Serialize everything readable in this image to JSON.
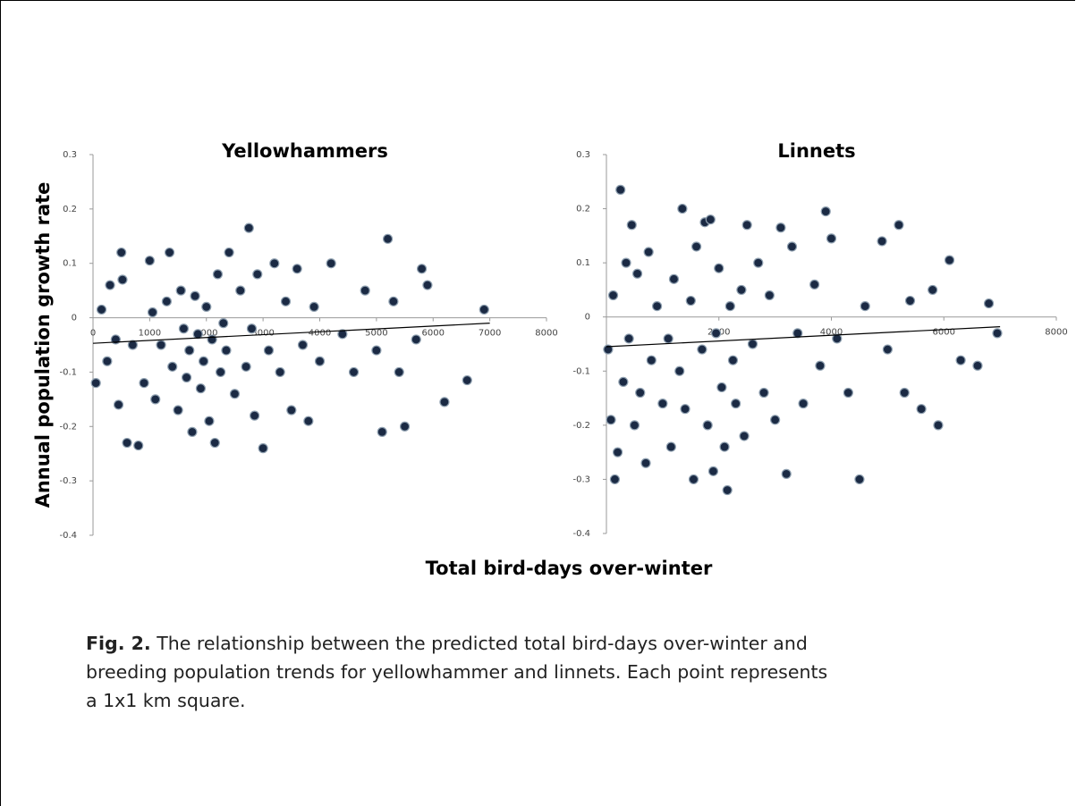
{
  "chart_data": [
    {
      "type": "scatter",
      "title": "Yellowhammers",
      "x": [
        50,
        150,
        250,
        300,
        400,
        450,
        500,
        520,
        600,
        700,
        800,
        900,
        1000,
        1050,
        1100,
        1200,
        1300,
        1350,
        1400,
        1500,
        1550,
        1600,
        1650,
        1700,
        1750,
        1800,
        1850,
        1900,
        1950,
        2000,
        2050,
        2100,
        2150,
        2200,
        2250,
        2300,
        2350,
        2400,
        2500,
        2600,
        2700,
        2750,
        2800,
        2850,
        2900,
        3000,
        3100,
        3200,
        3300,
        3400,
        3500,
        3600,
        3700,
        3800,
        3900,
        4000,
        4200,
        4400,
        4600,
        4800,
        5000,
        5100,
        5200,
        5300,
        5400,
        5500,
        5700,
        5800,
        5900,
        6200,
        6600,
        6900
      ],
      "values": [
        -0.12,
        0.015,
        -0.08,
        0.06,
        -0.04,
        -0.16,
        0.12,
        0.07,
        -0.23,
        -0.05,
        -0.235,
        -0.12,
        0.105,
        0.01,
        -0.15,
        -0.05,
        0.03,
        0.12,
        -0.09,
        -0.17,
        0.05,
        -0.02,
        -0.11,
        -0.06,
        -0.21,
        0.04,
        -0.03,
        -0.13,
        -0.08,
        0.02,
        -0.19,
        -0.04,
        -0.23,
        0.08,
        -0.1,
        -0.01,
        -0.06,
        0.12,
        -0.14,
        0.05,
        -0.09,
        0.165,
        -0.02,
        -0.18,
        0.08,
        -0.24,
        -0.06,
        0.1,
        -0.1,
        0.03,
        -0.17,
        0.09,
        -0.05,
        -0.19,
        0.02,
        -0.08,
        0.1,
        -0.03,
        -0.1,
        0.05,
        -0.06,
        -0.21,
        0.145,
        0.03,
        -0.1,
        -0.2,
        -0.04,
        0.09,
        0.06,
        -0.155,
        -0.115,
        0.015
      ],
      "color": "#1b2a44",
      "trendline": {
        "x": [
          0,
          7000
        ],
        "y": [
          -0.047,
          -0.01
        ]
      },
      "xlim": [
        0,
        8000
      ],
      "xticks": [
        0,
        1000,
        2000,
        3000,
        4000,
        5000,
        6000,
        7000,
        8000
      ],
      "ylim": [
        -0.4,
        0.3
      ],
      "yticks": [
        -0.4,
        -0.3,
        -0.2,
        -0.1,
        0,
        0.1,
        0.2,
        0.3
      ]
    },
    {
      "type": "scatter",
      "title": "Linnets",
      "x": [
        30,
        80,
        120,
        150,
        200,
        250,
        300,
        350,
        400,
        450,
        500,
        550,
        600,
        700,
        750,
        800,
        900,
        1000,
        1100,
        1150,
        1200,
        1300,
        1350,
        1400,
        1500,
        1550,
        1600,
        1700,
        1750,
        1800,
        1850,
        1900,
        1950,
        2000,
        2050,
        2100,
        2150,
        2200,
        2250,
        2300,
        2400,
        2450,
        2500,
        2600,
        2700,
        2800,
        2900,
        3000,
        3100,
        3200,
        3300,
        3400,
        3500,
        3700,
        3800,
        3900,
        4000,
        4100,
        4300,
        4500,
        4600,
        4900,
        5000,
        5200,
        5300,
        5400,
        5600,
        5800,
        5900,
        6100,
        6300,
        6600,
        6800,
        6950
      ],
      "values": [
        -0.06,
        -0.19,
        0.04,
        -0.3,
        -0.25,
        0.235,
        -0.12,
        0.1,
        -0.04,
        0.17,
        -0.2,
        0.08,
        -0.14,
        -0.27,
        0.12,
        -0.08,
        0.02,
        -0.16,
        -0.04,
        -0.24,
        0.07,
        -0.1,
        0.2,
        -0.17,
        0.03,
        -0.3,
        0.13,
        -0.06,
        0.175,
        -0.2,
        0.18,
        -0.285,
        -0.03,
        0.09,
        -0.13,
        -0.24,
        -0.32,
        0.02,
        -0.08,
        -0.16,
        0.05,
        -0.22,
        0.17,
        -0.05,
        0.1,
        -0.14,
        0.04,
        -0.19,
        0.165,
        -0.29,
        0.13,
        -0.03,
        -0.16,
        0.06,
        -0.09,
        0.195,
        0.145,
        -0.04,
        -0.14,
        -0.3,
        0.02,
        0.14,
        -0.06,
        0.17,
        -0.14,
        0.03,
        -0.17,
        0.05,
        -0.2,
        0.105,
        -0.08,
        -0.09,
        0.025,
        -0.03
      ],
      "color": "#1b2a44",
      "trendline": {
        "x": [
          0,
          7000
        ],
        "y": [
          -0.055,
          -0.018
        ]
      },
      "xlim": [
        0,
        8000
      ],
      "xticks": [
        2000,
        4000,
        6000,
        8000
      ],
      "ylim": [
        -0.4,
        0.3
      ],
      "yticks": [
        -0.4,
        -0.3,
        -0.2,
        -0.1,
        0,
        0.1,
        0.2,
        0.3
      ]
    }
  ],
  "shared_axis_labels": {
    "y": "Annual population growth rate",
    "x": "Total bird-days over-winter"
  },
  "caption": {
    "label": "Fig. 2.",
    "lines": [
      " The relationship between the predicted total bird-days over-winter and",
      "breeding population trends for yellowhammer and linnets. Each point represents",
      "a 1x1 km square."
    ]
  }
}
